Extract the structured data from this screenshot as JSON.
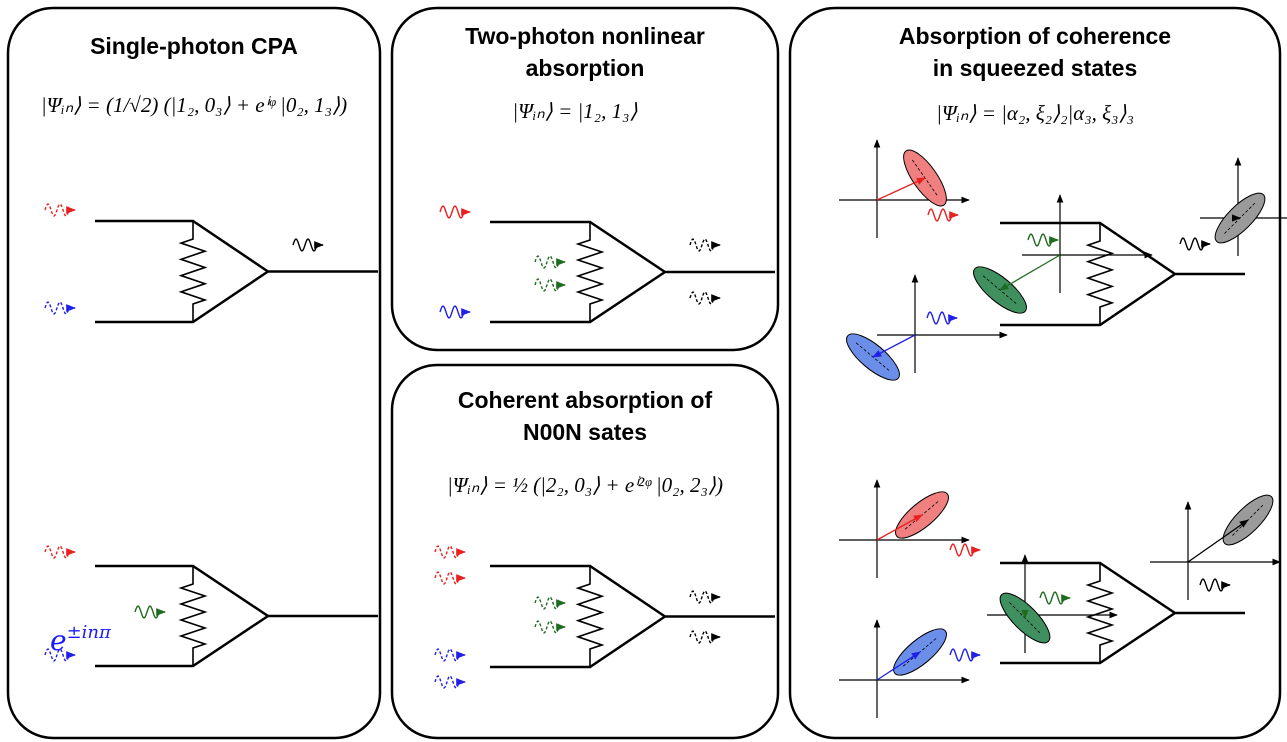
{
  "panels": [
    {
      "title": [
        "Single-photon CPA"
      ],
      "equation": "|Ψᵢₙ⟩ = (1/√2) (|1₂, 0₃⟩ + eⁱᵠ |0₂, 1₃⟩)",
      "phase_factor": {
        "base": "e",
        "exponent": "±inπ"
      }
    },
    {
      "title": [
        "Two-photon nonlinear",
        "absorption"
      ],
      "equation": "|Ψᵢₙ⟩ = |1₂, 1₃⟩"
    },
    {
      "title": [
        "Coherent absorption of",
        "N00N sates"
      ],
      "equation": "|Ψᵢₙ⟩ = ½ (|2₂, 0₃⟩ + eⁱ²ᵠ |0₂, 2₃⟩)"
    },
    {
      "title": [
        "Absorption of coherence",
        "in squeezed states"
      ],
      "equation": "|Ψᵢₙ⟩ = |α₂, ξ₂⟩₂|α₃, ξ₃⟩₃"
    }
  ]
}
